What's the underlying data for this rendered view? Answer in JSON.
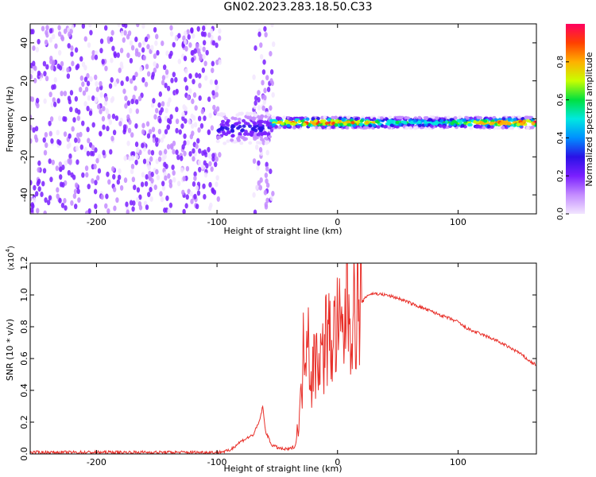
{
  "title": "GN02.2023.283.18.50.C33",
  "colors": {
    "snr_line": "#e8302a",
    "frame": "#000000",
    "colormap": [
      "#f2e6ff",
      "#c48cff",
      "#7a1fff",
      "#2a12e6",
      "#0090ff",
      "#00e8e0",
      "#00e040",
      "#c8ff00",
      "#ffb000",
      "#ff4000",
      "#ff0060"
    ]
  },
  "chart_data": [
    {
      "type": "heatmap",
      "name": "spectrogram",
      "xlabel": "Height of straight line (km)",
      "ylabel": "Frequency (Hz)",
      "xlim": [
        -255,
        165
      ],
      "ylim": [
        -50,
        50
      ],
      "xticks": [
        -200,
        -100,
        0,
        100
      ],
      "xtick_labels": [
        "-200",
        "-100",
        "0",
        "100"
      ],
      "yticks": [
        -40,
        -20,
        0,
        20,
        40
      ],
      "ytick_labels": [
        "-40",
        "-20",
        "0",
        "20",
        "40"
      ],
      "colorbar": {
        "label": "Normalized spectral amplitude",
        "range": [
          0,
          1
        ],
        "ticks": [
          0.0,
          0.2,
          0.4,
          0.6,
          0.8
        ],
        "tick_labels": [
          "0.0",
          "0.2",
          "0.4",
          "0.6",
          "0.8"
        ],
        "orientation": "vertical",
        "placement": "right"
      },
      "features": [
        {
          "region": "noise",
          "x_from": -255,
          "x_to": -97,
          "max_amplitude": 0.25
        },
        {
          "region": "noise",
          "x_from": -70,
          "x_to": -53,
          "max_amplitude": 0.2
        },
        {
          "region": "signal_onset",
          "x_from": -100,
          "x_to": -55,
          "center_hz": -5,
          "max_amplitude": 0.4
        },
        {
          "region": "carrier",
          "x_from": -55,
          "x_to": 165,
          "center_hz": -2,
          "max_amplitude": 1.0
        }
      ]
    },
    {
      "type": "line",
      "name": "snr",
      "xlabel": "Height of straight line (km)",
      "ylabel": "SNR (10 * v/v)",
      "yscale_label": "(x10",
      "yscale_exponent": "4",
      "xlim": [
        -255,
        165
      ],
      "ylim": [
        0,
        1.2
      ],
      "xticks": [
        -200,
        -100,
        0,
        100
      ],
      "xtick_labels": [
        "-200",
        "-100",
        "0",
        "100"
      ],
      "yticks": [
        0.0,
        0.2,
        0.4,
        0.6,
        0.8,
        1.0,
        1.2
      ],
      "ytick_labels": [
        "0.0",
        "0.2",
        "0.4",
        "0.6",
        "0.8",
        "1.0",
        "1.2"
      ],
      "series": [
        {
          "x": [
            -255,
            -200,
            -150,
            -100,
            -90,
            -85,
            -80,
            -75,
            -70,
            -65,
            -62,
            -60,
            -55,
            -50,
            -45,
            -40,
            -35,
            -30,
            -28,
            -25,
            -22,
            -20,
            -15,
            -12,
            -10,
            -5,
            0,
            5,
            8,
            10,
            15,
            20,
            25,
            30,
            40,
            50,
            60,
            70,
            80,
            90,
            100,
            105,
            110,
            120,
            130,
            140,
            150,
            160,
            165
          ],
          "y": [
            0.01,
            0.01,
            0.01,
            0.01,
            0.02,
            0.05,
            0.08,
            0.1,
            0.12,
            0.2,
            0.3,
            0.15,
            0.06,
            0.04,
            0.03,
            0.03,
            0.05,
            0.35,
            0.7,
            0.9,
            0.45,
            0.55,
            0.65,
            0.6,
            0.75,
            0.7,
            0.8,
            0.7,
            1.1,
            0.85,
            0.9,
            0.95,
            1.0,
            1.01,
            1.0,
            0.98,
            0.95,
            0.92,
            0.89,
            0.86,
            0.83,
            0.8,
            0.78,
            0.75,
            0.72,
            0.68,
            0.64,
            0.58,
            0.56
          ]
        }
      ]
    }
  ]
}
